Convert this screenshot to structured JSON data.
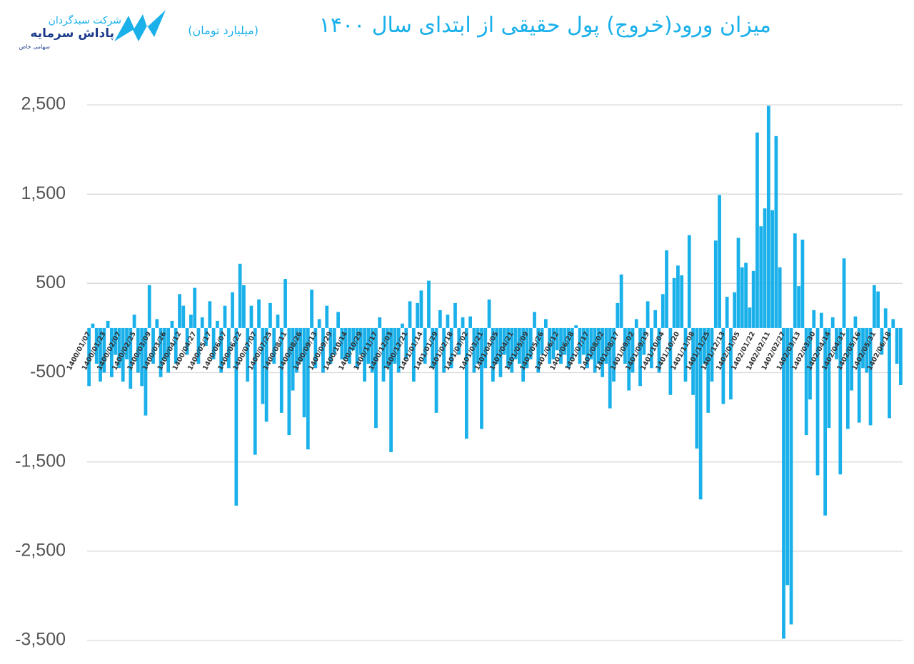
{
  "logo": {
    "company": "شرکت سبدگردان",
    "name": "پاداش سرمایه",
    "kind": "سهامی خاص"
  },
  "chart_data": {
    "type": "bar",
    "title": "میزان ورود(خروج) پول حقیقی از ابتدای سال ۱۴۰۰",
    "subtitle": "(میلیارد تومان)",
    "color": "#1ab0ea",
    "grid": true,
    "ylim": [
      -3500,
      2500
    ],
    "yticks": [
      {
        "value": -3500,
        "label": "-3,500"
      },
      {
        "value": -2500,
        "label": "-2,500"
      },
      {
        "value": -1500,
        "label": "-1,500"
      },
      -500,
      500,
      {
        "value": 1500,
        "label": "1,500"
      },
      {
        "value": 2500,
        "label": "2,500"
      }
    ],
    "categories": [
      "1400/01/07",
      null,
      null,
      null,
      "1400/01/23",
      null,
      null,
      null,
      "1400/02/07",
      null,
      null,
      null,
      "1400/02/25",
      null,
      null,
      null,
      "1400/03/09",
      null,
      null,
      null,
      "1400/03/26",
      null,
      null,
      null,
      "1400/04/12",
      null,
      null,
      null,
      "1400/04/27",
      null,
      null,
      null,
      "1400/05/17",
      null,
      null,
      null,
      "1400/06/07",
      null,
      null,
      null,
      "1400/06/22",
      null,
      null,
      null,
      "1400/07/07",
      null,
      null,
      null,
      "1400/07/25",
      null,
      null,
      null,
      "1400/08/11",
      null,
      null,
      null,
      "1400/08/26",
      null,
      null,
      null,
      "1400/09/13",
      null,
      null,
      null,
      "1400/09/29",
      null,
      null,
      null,
      "1400/10/14",
      null,
      null,
      null,
      "1400/10/29",
      null,
      null,
      null,
      "1400/11/17",
      null,
      null,
      null,
      "1400/12/03",
      null,
      null,
      null,
      "1400/12/21",
      null,
      null,
      null,
      "1401/01/14",
      null,
      null,
      null,
      "1401/01/29",
      null,
      null,
      null,
      "1401/02/18",
      null,
      null,
      null,
      "1401/03/02",
      null,
      null,
      null,
      "1401/03/21",
      null,
      null,
      null,
      "1401/04/05",
      null,
      null,
      null,
      "1401/04/21",
      null,
      null,
      null,
      "1401/05/09",
      null,
      null,
      null,
      "1401/05/26",
      null,
      null,
      null,
      "1401/06/12",
      null,
      null,
      null,
      "1401/06/28",
      null,
      null,
      null,
      "1401/07/17",
      null,
      null,
      null,
      "1401/08/02",
      null,
      null,
      null,
      "1401/08/17",
      null,
      null,
      null,
      "1401/09/02",
      null,
      null,
      null,
      "1401/09/19",
      null,
      null,
      null,
      "1401/10/04",
      null,
      null,
      null,
      "1401/10/20",
      null,
      null,
      null,
      "1401/11/08",
      null,
      null,
      null,
      "1401/11/25",
      null,
      null,
      null,
      "1401/12/13",
      null,
      null,
      null,
      "1402/01/05",
      null,
      null,
      null,
      "1402/01/22",
      null,
      null,
      null,
      "1402/02/11",
      null,
      null,
      null,
      "1402/02/27",
      null,
      null,
      null,
      "1402/03/13",
      null,
      null,
      null,
      "1402/03/30",
      null,
      null,
      null,
      "1402/04/14",
      null,
      null,
      null,
      "1402/04/31",
      null,
      null,
      null,
      "1402/05/16",
      null,
      null,
      null,
      "1402/05/31",
      null,
      null,
      null,
      "1402/06/18",
      null,
      null,
      null
    ],
    "values": [
      -650,
      50,
      -400,
      -600,
      -500,
      80,
      -550,
      -300,
      -450,
      -600,
      -350,
      -680,
      150,
      -500,
      -650,
      -980,
      480,
      -400,
      100,
      -550,
      -350,
      -500,
      80,
      -400,
      380,
      250,
      -300,
      150,
      450,
      -400,
      120,
      -200,
      300,
      -350,
      80,
      -500,
      250,
      -450,
      400,
      -1990,
      720,
      480,
      -600,
      250,
      -1420,
      320,
      -850,
      -1050,
      280,
      -400,
      150,
      -950,
      550,
      -1200,
      -700,
      -500,
      -380,
      -1000,
      -1360,
      430,
      -450,
      100,
      -500,
      250,
      -400,
      -300,
      180,
      -350,
      -350,
      -400,
      -250,
      -450,
      -300,
      -600,
      -400,
      -500,
      -1120,
      120,
      -600,
      -450,
      -1390,
      -400,
      -500,
      50,
      -350,
      300,
      -600,
      280,
      420,
      -400,
      530,
      -450,
      -950,
      200,
      -500,
      150,
      -450,
      280,
      -300,
      120,
      -1240,
      130,
      -500,
      -400,
      -1130,
      -450,
      320,
      -600,
      -400,
      -550,
      -300,
      -450,
      -500,
      -350,
      -400,
      -600,
      -450,
      -350,
      180,
      -500,
      -300,
      100,
      -400,
      -350,
      -250,
      -400,
      -300,
      -450,
      -350,
      30,
      -400,
      -300,
      -450,
      -350,
      -500,
      -400,
      -550,
      -400,
      -900,
      -600,
      280,
      600,
      -400,
      -700,
      -500,
      100,
      -650,
      -300,
      300,
      -450,
      200,
      -500,
      380,
      870,
      -750,
      560,
      700,
      590,
      -600,
      1040,
      -750,
      -1350,
      -1920,
      -400,
      -950,
      -600,
      980,
      1490,
      -850,
      350,
      -800,
      400,
      1010,
      680,
      730,
      230,
      640,
      2190,
      1140,
      1340,
      2490,
      1320,
      2150,
      680,
      -3480,
      -2880,
      -3320,
      1060,
      470,
      990,
      -1200,
      -800,
      200,
      -1650,
      170,
      -2100,
      -1120,
      120,
      -350,
      -1640,
      780,
      -1130,
      -700,
      130,
      -1060,
      -450,
      -500,
      -1090,
      480,
      410,
      -300,
      220,
      -1010,
      100,
      -400,
      -640
    ]
  }
}
